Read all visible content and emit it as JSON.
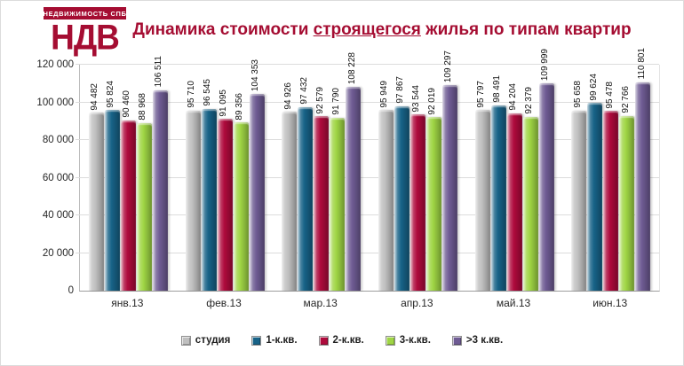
{
  "header": {
    "logo": {
      "top_text": "НЕДВИЖИМОСТЬ СПБ",
      "main_text": "НДВ"
    },
    "title": {
      "pre": "Динамика стоимости ",
      "underlined": "строящегося",
      "post": " жилья по типам квартир"
    }
  },
  "colors": {
    "brand": "#A50D32",
    "title": "#A50D32",
    "grid": "#DCDCDC",
    "axis": "#9E9E9E"
  },
  "chart_data": {
    "type": "bar",
    "title": "Динамика стоимости строящегося жилья по типам квартир",
    "categories": [
      "янв.13",
      "фев.13",
      "мар.13",
      "апр.13",
      "май.13",
      "июн.13"
    ],
    "series": [
      {
        "name": "студия",
        "color": "#BFBFBF",
        "values": [
          94482,
          95710,
          94926,
          95949,
          95797,
          95658
        ]
      },
      {
        "name": "1-к.кв.",
        "color": "#176287",
        "values": [
          95824,
          96545,
          97432,
          97867,
          98491,
          99624
        ]
      },
      {
        "name": "2-к.кв.",
        "color": "#AE0A3C",
        "values": [
          90460,
          91095,
          92579,
          93544,
          94204,
          95478
        ]
      },
      {
        "name": "3-к.кв.",
        "color": "#9FD544",
        "values": [
          88968,
          89356,
          91790,
          92019,
          92379,
          92766
        ]
      },
      {
        "name": ">3 к.кв.",
        "color": "#6E5B93",
        "values": [
          106511,
          104353,
          108228,
          109297,
          109999,
          110801
        ]
      }
    ],
    "xlabel": "",
    "ylabel": "",
    "ylim": [
      0,
      120000
    ],
    "ytick_step": 20000,
    "ytick_labels": [
      "0",
      "20 000",
      "40 000",
      "60 000",
      "80 000",
      "100 000",
      "120 000"
    ],
    "grid": true,
    "legend_position": "bottom",
    "data_labels": "rotated-90-above-bars"
  }
}
